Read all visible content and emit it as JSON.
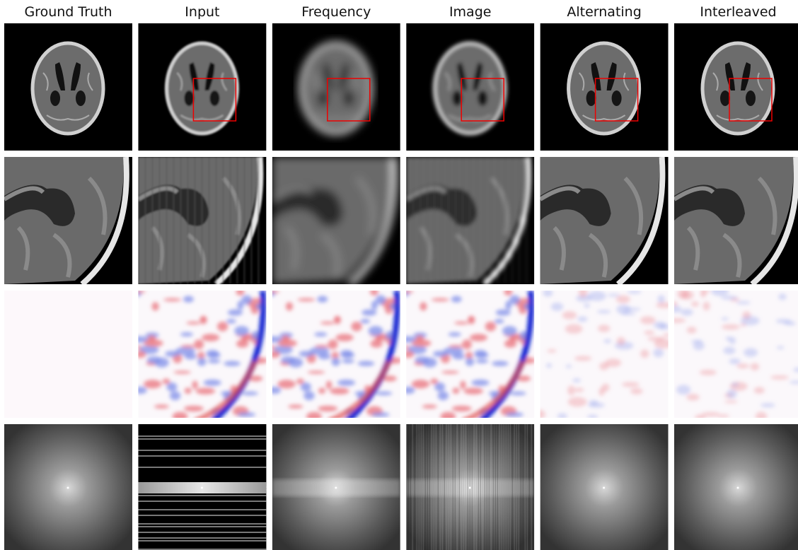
{
  "columns": [
    "Ground Truth",
    "Input",
    "Frequency",
    "Image",
    "Alternating",
    "Interleaved"
  ]
}
